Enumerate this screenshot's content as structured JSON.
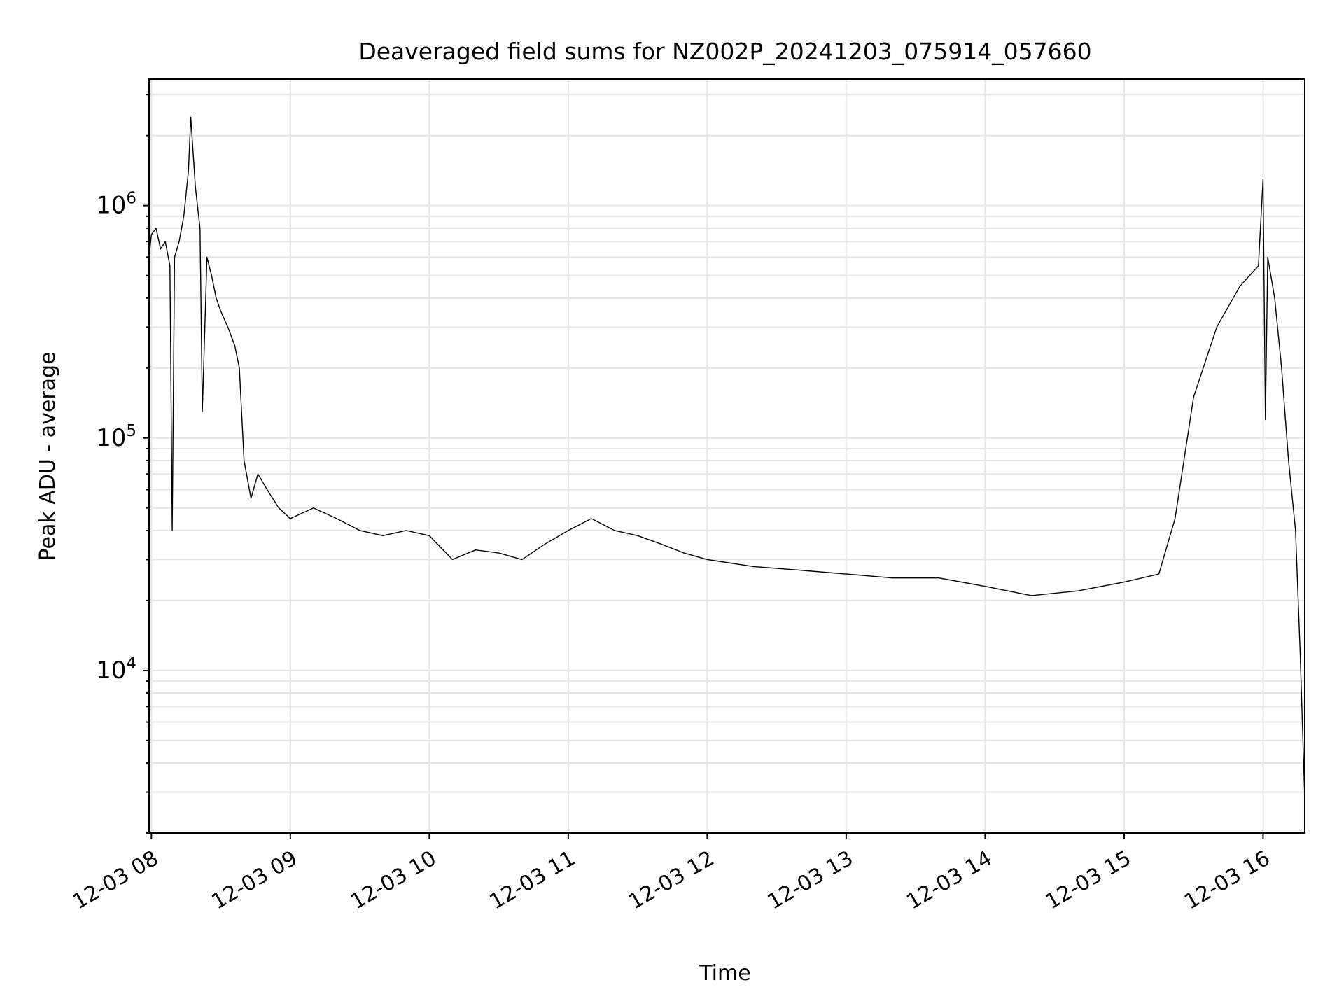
{
  "chart_data": {
    "type": "line",
    "title": "Deaveraged field sums for NZ002P_20241203_075914_057660",
    "xlabel": "Time",
    "ylabel": "Peak ADU - average",
    "yscale": "log",
    "ylim": [
      2000,
      3500000
    ],
    "xlim": [
      "2024-12-03 07:59",
      "2024-12-03 16:18"
    ],
    "x_ticks": [
      {
        "value": "2024-12-03 08:00",
        "label": "12-03 08"
      },
      {
        "value": "2024-12-03 09:00",
        "label": "12-03 09"
      },
      {
        "value": "2024-12-03 10:00",
        "label": "12-03 10"
      },
      {
        "value": "2024-12-03 11:00",
        "label": "12-03 11"
      },
      {
        "value": "2024-12-03 12:00",
        "label": "12-03 12"
      },
      {
        "value": "2024-12-03 13:00",
        "label": "12-03 13"
      },
      {
        "value": "2024-12-03 14:00",
        "label": "12-03 14"
      },
      {
        "value": "2024-12-03 15:00",
        "label": "12-03 15"
      },
      {
        "value": "2024-12-03 16:00",
        "label": "12-03 16"
      }
    ],
    "y_ticks": [
      {
        "value": 10000,
        "base": "10",
        "exp": "4"
      },
      {
        "value": 100000,
        "base": "10",
        "exp": "5"
      },
      {
        "value": 1000000,
        "base": "10",
        "exp": "6"
      }
    ],
    "grid": true,
    "line_color": "#000000",
    "grid_color": "#e6e6e6",
    "series": [
      {
        "points": [
          [
            "2024-12-03 07:59",
            600000
          ],
          [
            "2024-12-03 08:00",
            750000
          ],
          [
            "2024-12-03 08:02",
            800000
          ],
          [
            "2024-12-03 08:04",
            650000
          ],
          [
            "2024-12-03 08:06",
            700000
          ],
          [
            "2024-12-03 08:08",
            550000
          ],
          [
            "2024-12-03 08:09",
            40000
          ],
          [
            "2024-12-03 08:10",
            600000
          ],
          [
            "2024-12-03 08:12",
            700000
          ],
          [
            "2024-12-03 08:14",
            900000
          ],
          [
            "2024-12-03 08:16",
            1400000
          ],
          [
            "2024-12-03 08:17",
            2400000
          ],
          [
            "2024-12-03 08:19",
            1200000
          ],
          [
            "2024-12-03 08:21",
            800000
          ],
          [
            "2024-12-03 08:22",
            130000
          ],
          [
            "2024-12-03 08:24",
            600000
          ],
          [
            "2024-12-03 08:26",
            500000
          ],
          [
            "2024-12-03 08:28",
            400000
          ],
          [
            "2024-12-03 08:30",
            350000
          ],
          [
            "2024-12-03 08:33",
            300000
          ],
          [
            "2024-12-03 08:36",
            250000
          ],
          [
            "2024-12-03 08:38",
            200000
          ],
          [
            "2024-12-03 08:40",
            80000
          ],
          [
            "2024-12-03 08:43",
            55000
          ],
          [
            "2024-12-03 08:46",
            70000
          ],
          [
            "2024-12-03 08:50",
            60000
          ],
          [
            "2024-12-03 08:55",
            50000
          ],
          [
            "2024-12-03 09:00",
            45000
          ],
          [
            "2024-12-03 09:10",
            50000
          ],
          [
            "2024-12-03 09:20",
            45000
          ],
          [
            "2024-12-03 09:30",
            40000
          ],
          [
            "2024-12-03 09:40",
            38000
          ],
          [
            "2024-12-03 09:50",
            40000
          ],
          [
            "2024-12-03 10:00",
            38000
          ],
          [
            "2024-12-03 10:10",
            30000
          ],
          [
            "2024-12-03 10:20",
            33000
          ],
          [
            "2024-12-03 10:30",
            32000
          ],
          [
            "2024-12-03 10:40",
            30000
          ],
          [
            "2024-12-03 10:50",
            35000
          ],
          [
            "2024-12-03 11:00",
            40000
          ],
          [
            "2024-12-03 11:10",
            45000
          ],
          [
            "2024-12-03 11:20",
            40000
          ],
          [
            "2024-12-03 11:30",
            38000
          ],
          [
            "2024-12-03 11:40",
            35000
          ],
          [
            "2024-12-03 11:50",
            32000
          ],
          [
            "2024-12-03 12:00",
            30000
          ],
          [
            "2024-12-03 12:20",
            28000
          ],
          [
            "2024-12-03 12:40",
            27000
          ],
          [
            "2024-12-03 13:00",
            26000
          ],
          [
            "2024-12-03 13:20",
            25000
          ],
          [
            "2024-12-03 13:40",
            25000
          ],
          [
            "2024-12-03 14:00",
            23000
          ],
          [
            "2024-12-03 14:20",
            21000
          ],
          [
            "2024-12-03 14:40",
            22000
          ],
          [
            "2024-12-03 15:00",
            24000
          ],
          [
            "2024-12-03 15:15",
            26000
          ],
          [
            "2024-12-03 15:22",
            45000
          ],
          [
            "2024-12-03 15:30",
            150000
          ],
          [
            "2024-12-03 15:40",
            300000
          ],
          [
            "2024-12-03 15:50",
            450000
          ],
          [
            "2024-12-03 15:58",
            550000
          ],
          [
            "2024-12-03 16:00",
            1300000
          ],
          [
            "2024-12-03 16:01",
            120000
          ],
          [
            "2024-12-03 16:02",
            600000
          ],
          [
            "2024-12-03 16:05",
            400000
          ],
          [
            "2024-12-03 16:08",
            200000
          ],
          [
            "2024-12-03 16:11",
            80000
          ],
          [
            "2024-12-03 16:14",
            40000
          ],
          [
            "2024-12-03 16:16",
            12000
          ],
          [
            "2024-12-03 16:18",
            2800
          ]
        ]
      }
    ]
  }
}
